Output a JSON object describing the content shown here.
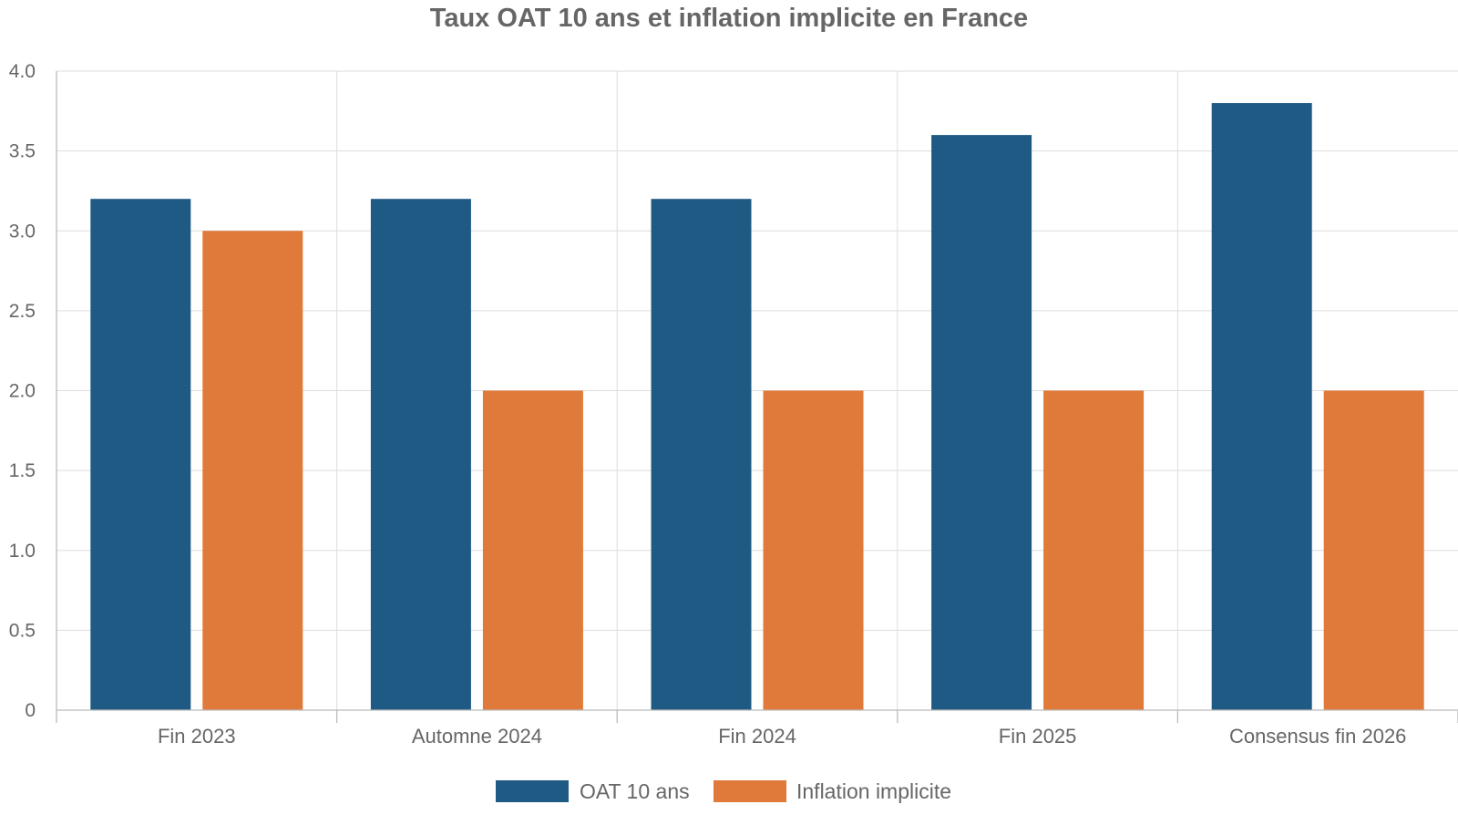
{
  "chart_data": {
    "type": "bar",
    "title": "Taux OAT 10 ans et inflation implicite en France",
    "xlabel": "",
    "ylabel": "",
    "categories": [
      "Fin 2023",
      "Automne 2024",
      "Fin 2024",
      "Fin 2025",
      "Consensus fin 2026"
    ],
    "series": [
      {
        "name": "OAT 10 ans",
        "color": "#1f5a85",
        "values": [
          3.2,
          3.2,
          3.2,
          3.6,
          3.8
        ]
      },
      {
        "name": "Inflation implicite",
        "color": "#e07a3a",
        "values": [
          3.0,
          2.0,
          2.0,
          2.0,
          2.0
        ]
      }
    ],
    "ylim": [
      0,
      4.0
    ],
    "yticks": [
      "0",
      "0.5",
      "1.0",
      "1.5",
      "2.0",
      "2.5",
      "3.0",
      "3.5",
      "4.0"
    ],
    "grid": true,
    "legend_position": "bottom-center"
  }
}
